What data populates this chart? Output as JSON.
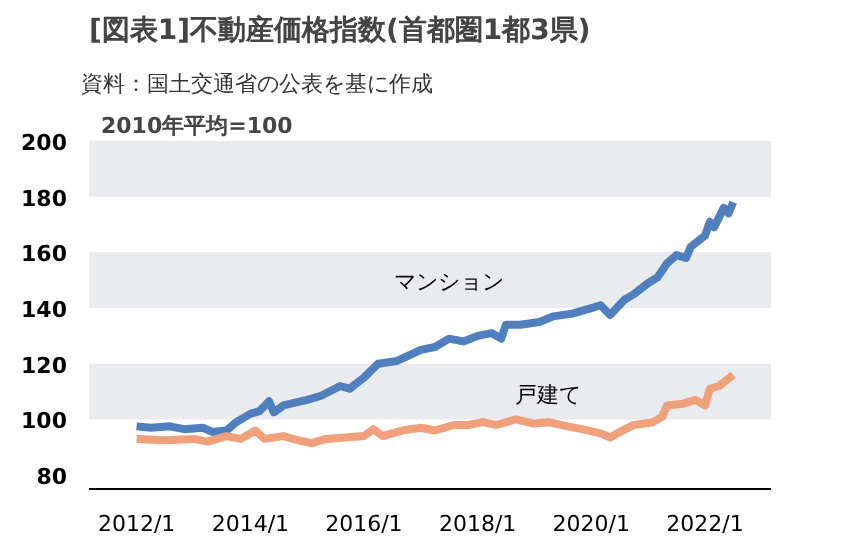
{
  "chart_data": {
    "type": "line",
    "title": "[図表1]不動産価格指数(首都圏1都3県)",
    "annotations": [
      "資料：国土交通省の公表を基に作成"
    ],
    "ylabel": "2010年平均=100",
    "xlim": [
      "2011-03",
      "2023-03"
    ],
    "xticks": [
      {
        "value": "2012-01",
        "label": "2012/1"
      },
      {
        "value": "2014-01",
        "label": "2014/1"
      },
      {
        "value": "2016-01",
        "label": "2016/1"
      },
      {
        "value": "2018-01",
        "label": "2018/1"
      },
      {
        "value": "2020-01",
        "label": "2020/1"
      },
      {
        "value": "2022-01",
        "label": "2022/1"
      }
    ],
    "ylim": [
      75,
      200
    ],
    "yticks": [
      80,
      100,
      120,
      140,
      160,
      180,
      200
    ],
    "bands": [
      {
        "axis": "y",
        "from": 100,
        "to": 120,
        "color": "#e9ebee"
      },
      {
        "axis": "y",
        "from": 140,
        "to": 160,
        "color": "#e9ebee"
      },
      {
        "axis": "y",
        "from": 180,
        "to": 200,
        "color": "#e9ebee"
      }
    ],
    "legend": false,
    "marker": "none",
    "line_style": "solid",
    "series": [
      {
        "name": "マンション",
        "color": "#4f7fbf",
        "x": [
          "2012-01",
          "2012-04",
          "2012-08",
          "2012-11",
          "2013-03",
          "2013-05",
          "2013-08",
          "2013-10",
          "2014-01",
          "2014-03",
          "2014-05",
          "2014-06",
          "2014-08",
          "2015-01",
          "2015-04",
          "2015-08",
          "2015-10",
          "2016-01",
          "2016-04",
          "2016-08",
          "2017-01",
          "2017-04",
          "2017-07",
          "2017-10",
          "2018-01",
          "2018-04",
          "2018-06",
          "2018-07",
          "2018-10",
          "2019-02",
          "2019-05",
          "2019-09",
          "2020-01",
          "2020-03",
          "2020-05",
          "2020-08",
          "2020-10",
          "2021-01",
          "2021-03",
          "2021-05",
          "2021-07",
          "2021-09",
          "2021-10",
          "2022-01",
          "2022-02",
          "2022-03",
          "2022-05",
          "2022-06",
          "2022-07"
        ],
        "values": [
          97.5,
          97,
          97.5,
          96.5,
          97,
          95.5,
          96,
          99,
          102,
          103,
          106.5,
          102.5,
          105,
          107,
          108.5,
          112,
          111,
          115,
          120,
          121,
          125,
          126,
          129,
          128,
          130,
          131,
          129,
          134,
          134,
          135,
          137,
          138,
          140,
          141,
          137.5,
          143,
          145,
          149,
          151,
          156,
          159,
          158,
          162,
          166,
          171,
          169,
          176,
          174,
          178
        ]
      },
      {
        "name": "戸建て",
        "color": "#f0a07a",
        "x": [
          "2012-01",
          "2012-07",
          "2013-01",
          "2013-04",
          "2013-08",
          "2013-11",
          "2014-02",
          "2014-04",
          "2014-08",
          "2014-11",
          "2015-02",
          "2015-05",
          "2015-09",
          "2016-01",
          "2016-03",
          "2016-05",
          "2016-09",
          "2017-01",
          "2017-04",
          "2017-08",
          "2017-11",
          "2018-02",
          "2018-05",
          "2018-09",
          "2019-01",
          "2019-04",
          "2019-08",
          "2019-11",
          "2020-03",
          "2020-05",
          "2020-07",
          "2020-10",
          "2021-02",
          "2021-04",
          "2021-05",
          "2021-08",
          "2021-11",
          "2022-01",
          "2022-02",
          "2022-04",
          "2022-07"
        ],
        "values": [
          93,
          92.5,
          93,
          92,
          94,
          93,
          96,
          93,
          94,
          92.5,
          91.5,
          93,
          93.5,
          94,
          96.5,
          94,
          96,
          97,
          96,
          98,
          98,
          99,
          98,
          100,
          98.5,
          99,
          97.5,
          96.5,
          95,
          93.5,
          95.5,
          98,
          99,
          101,
          105,
          105.5,
          107,
          105,
          111,
          112,
          116
        ]
      }
    ]
  }
}
